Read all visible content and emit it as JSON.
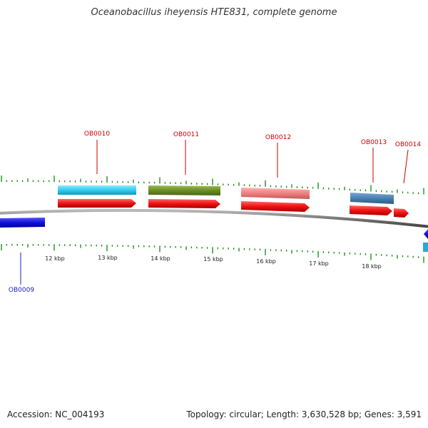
{
  "title": "Oceanobacillus iheyensis HTE831, complete genome",
  "footer": {
    "accession": "Accession: NC_004193",
    "summary": "Topology: circular; Length: 3,630,528 bp; Genes: 3,591"
  },
  "ruler": {
    "labels": [
      "12 kbp",
      "13 kbp",
      "14 kbp",
      "15 kbp",
      "16 kbp",
      "17 kbp",
      "18 kbp"
    ]
  },
  "genes": [
    {
      "id": "OB0009",
      "label": "OB0009",
      "label_color": "#1a1ab8"
    },
    {
      "id": "OB0010",
      "label": "OB0010",
      "label_color": "#cc0000",
      "feature_color": "#33ccee"
    },
    {
      "id": "OB0011",
      "label": "OB0011",
      "label_color": "#cc0000",
      "feature_color": "#6b8e23"
    },
    {
      "id": "OB0012",
      "label": "OB0012",
      "label_color": "#cc0000",
      "feature_color": "#f08080"
    },
    {
      "id": "OB0013",
      "label": "OB0013",
      "label_color": "#cc0000",
      "feature_color": "#4682b4"
    },
    {
      "id": "OB0014",
      "label": "OB0014",
      "label_color": "#cc0000"
    }
  ],
  "colors": {
    "cds": "#ee1111",
    "reverse_cds": "#1111dd",
    "backbone": "#888888",
    "tick": "#0a8a0a"
  }
}
